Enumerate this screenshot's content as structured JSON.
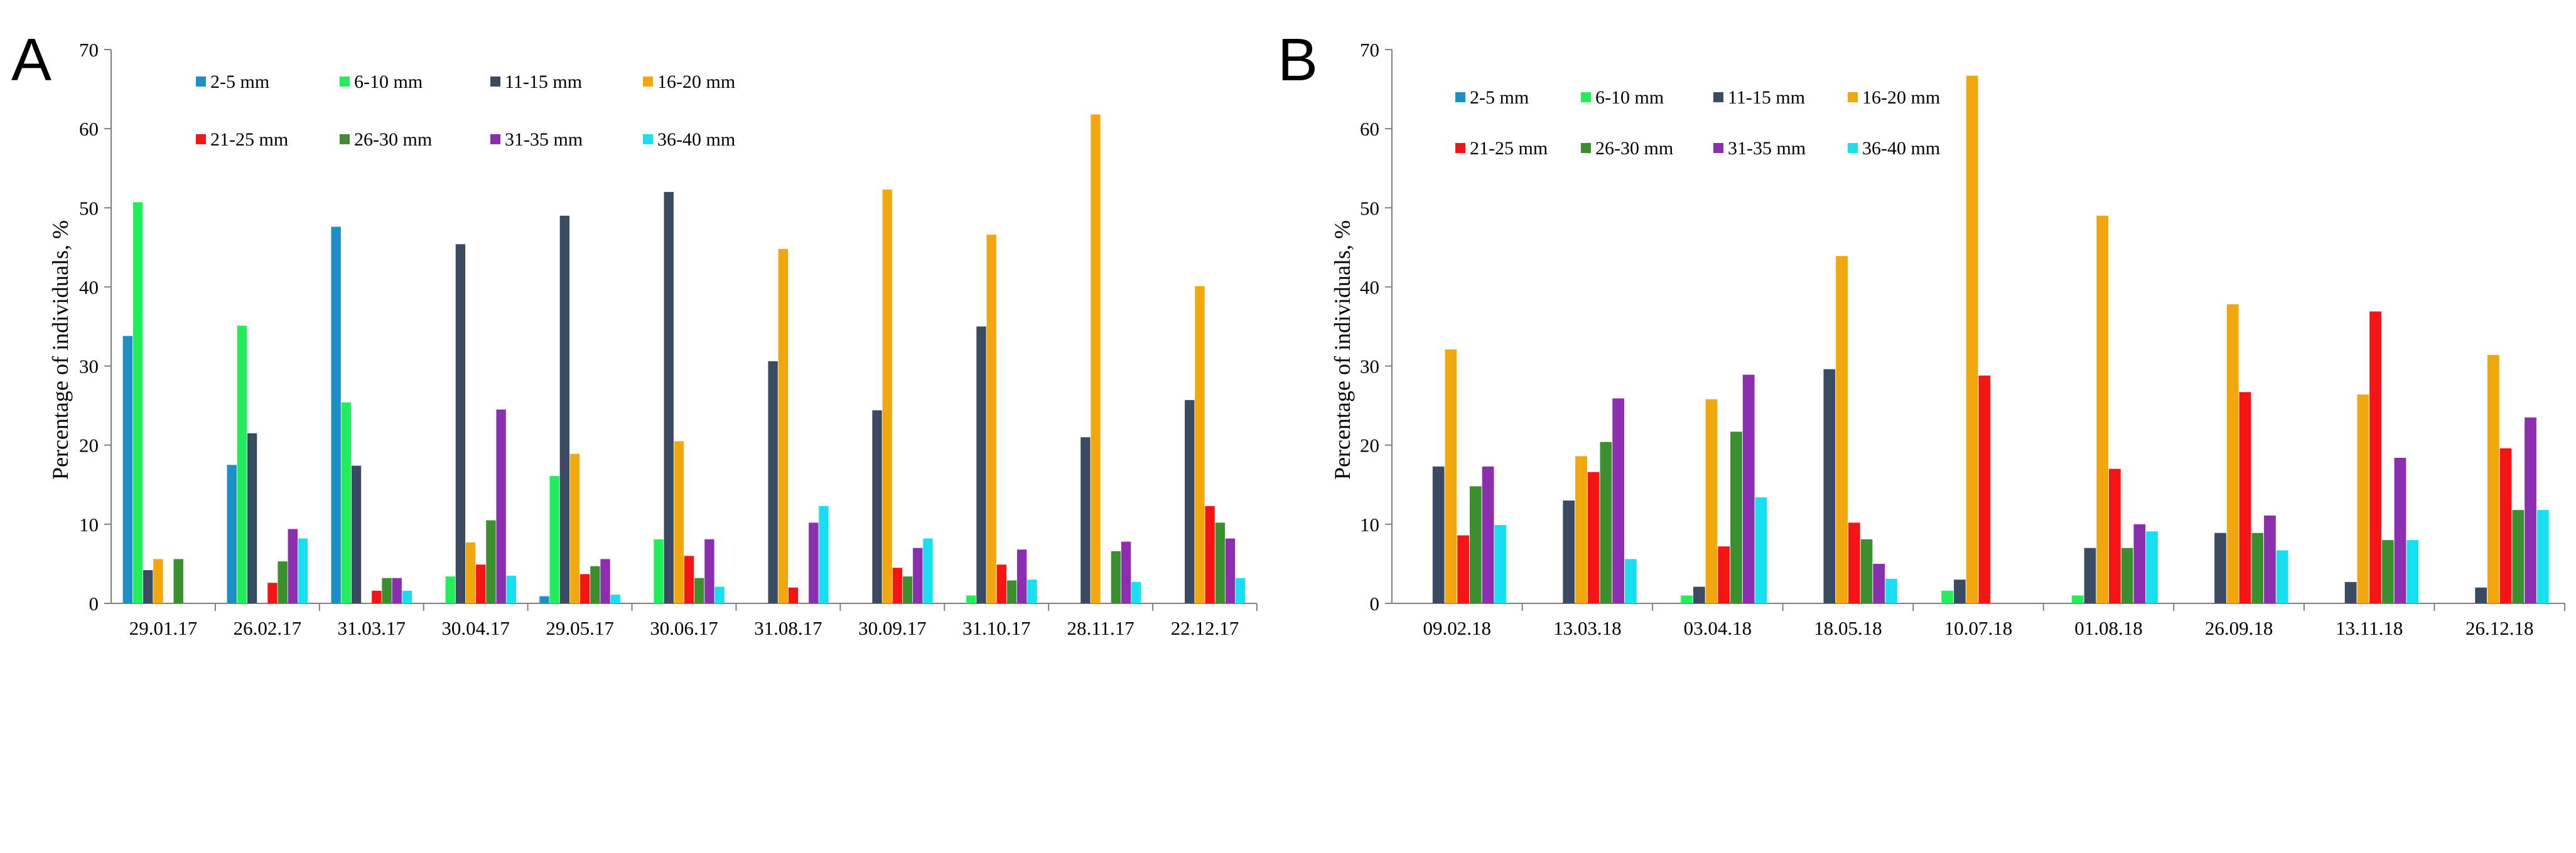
{
  "chart_data": [
    {
      "panel_label": "A",
      "type": "bar",
      "ylabel": "Percentage of individuals, %",
      "ylim": [
        0,
        70
      ],
      "yticks": [
        0,
        10,
        20,
        30,
        40,
        50,
        60,
        70
      ],
      "categories": [
        "29.01.17",
        "26.02.17",
        "31.03.17",
        "30.04.17",
        "29.05.17",
        "30.06.17",
        "31.08.17",
        "30.09.17",
        "31.10.17",
        "28.11.17",
        "22.12.17"
      ],
      "series": [
        {
          "name": "2-5 mm",
          "color": "#1b8fc6",
          "values": [
            33.8,
            17.5,
            47.6,
            0,
            0.9,
            0,
            0,
            0,
            0,
            0,
            0
          ]
        },
        {
          "name": "6-10 mm",
          "color": "#22ee5b",
          "values": [
            50.7,
            35.1,
            25.4,
            3.4,
            16.1,
            8.1,
            0,
            0,
            1.0,
            0,
            0
          ]
        },
        {
          "name": "11-15 mm",
          "color": "#3a4a62",
          "values": [
            4.2,
            21.5,
            17.4,
            45.4,
            49.0,
            52.0,
            30.6,
            24.4,
            35.0,
            21.0,
            25.7
          ]
        },
        {
          "name": "16-20 mm",
          "color": "#f2a70c",
          "values": [
            5.6,
            0,
            0,
            7.7,
            18.9,
            20.5,
            44.8,
            52.3,
            46.6,
            61.8,
            40.1
          ]
        },
        {
          "name": "21-25 mm",
          "color": "#f51414",
          "values": [
            0,
            2.6,
            1.6,
            4.9,
            3.7,
            6.0,
            2.0,
            4.5,
            4.9,
            0,
            12.3
          ]
        },
        {
          "name": "26-30 mm",
          "color": "#3a8f2e",
          "values": [
            5.6,
            5.3,
            3.2,
            10.5,
            4.7,
            3.2,
            0,
            3.4,
            2.9,
            6.6,
            10.2
          ]
        },
        {
          "name": "31-35 mm",
          "color": "#8b2fb0",
          "values": [
            0,
            9.4,
            3.2,
            24.5,
            5.6,
            8.1,
            10.2,
            7.0,
            6.8,
            7.8,
            8.2
          ]
        },
        {
          "name": "36-40 mm",
          "color": "#17dff0",
          "values": [
            0,
            8.2,
            1.6,
            3.5,
            1.1,
            2.1,
            12.3,
            8.2,
            3.0,
            2.7,
            3.2
          ]
        }
      ]
    },
    {
      "panel_label": "B",
      "type": "bar",
      "ylabel": "Percentage of individuals, %",
      "ylim": [
        0,
        70
      ],
      "yticks": [
        0,
        10,
        20,
        30,
        40,
        50,
        60,
        70
      ],
      "categories": [
        "09.02.18",
        "13.03.18",
        "03.04.18",
        "18.05.18",
        "10.07.18",
        "01.08.18",
        "26.09.18",
        "13.11.18",
        "26.12.18"
      ],
      "series": [
        {
          "name": "2-5 mm",
          "color": "#1b8fc6",
          "values": [
            0,
            0,
            0,
            0,
            0,
            0,
            0,
            0,
            0
          ]
        },
        {
          "name": "6-10 mm",
          "color": "#22ee5b",
          "values": [
            0,
            0,
            1.0,
            0,
            1.6,
            1.0,
            0,
            0,
            0
          ]
        },
        {
          "name": "11-15 mm",
          "color": "#3a4a62",
          "values": [
            17.3,
            13.0,
            2.1,
            29.6,
            3.0,
            7.0,
            8.9,
            2.7,
            2.0
          ]
        },
        {
          "name": "16-20 mm",
          "color": "#f2a70c",
          "values": [
            32.1,
            18.6,
            25.8,
            43.9,
            66.7,
            49.0,
            37.8,
            26.4,
            31.4
          ]
        },
        {
          "name": "21-25 mm",
          "color": "#f51414",
          "values": [
            8.6,
            16.6,
            7.2,
            10.2,
            28.8,
            17.0,
            26.7,
            36.9,
            19.6
          ]
        },
        {
          "name": "26-30 mm",
          "color": "#3a8f2e",
          "values": [
            14.8,
            20.4,
            21.7,
            8.1,
            0,
            7.0,
            8.9,
            8.0,
            11.8
          ]
        },
        {
          "name": "31-35 mm",
          "color": "#8b2fb0",
          "values": [
            17.3,
            25.9,
            28.9,
            5.0,
            0,
            10.0,
            11.1,
            18.4,
            23.5
          ]
        },
        {
          "name": "36-40 mm",
          "color": "#17dff0",
          "values": [
            9.9,
            5.6,
            13.4,
            3.1,
            0,
            9.1,
            6.7,
            8.0,
            11.8
          ]
        }
      ]
    }
  ]
}
